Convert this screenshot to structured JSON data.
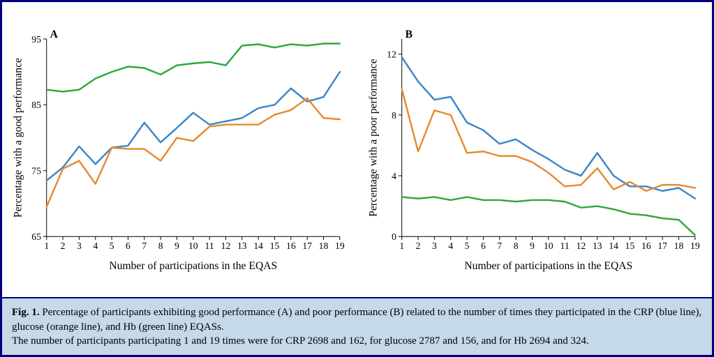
{
  "figure": {
    "caption_title": "Fig. 1.",
    "caption_body": "Percentage of participants exhibiting good performance (A) and poor performance (B) related to the number of times they participated in the CRP (blue line), glucose (orange line), and Hb (green line) EQASs.",
    "caption_note": "The number of participants participating 1 and 19 times were for CRP 2698 and 162, for glucose 2787 and 156, and for Hb 2694 and 324.",
    "border_color": "#000080",
    "caption_bg": "#c5d9e8",
    "line_width": 2.5,
    "colors": {
      "crp": "#3b86c8",
      "glucose": "#e78a2e",
      "hb": "#2fa83a"
    },
    "panelA": {
      "label": "A",
      "ylabel": "Percentage with a good performance",
      "xlabel": "Number of participations in the EQAS",
      "x": [
        1,
        2,
        3,
        4,
        5,
        6,
        7,
        8,
        9,
        10,
        11,
        12,
        13,
        14,
        15,
        16,
        17,
        18,
        19
      ],
      "xlim": [
        1,
        19
      ],
      "ylim": [
        65,
        95
      ],
      "yticks": [
        65,
        75,
        85,
        95
      ],
      "series": {
        "hb": [
          87.3,
          87.0,
          87.3,
          89.0,
          90.0,
          90.8,
          90.6,
          89.6,
          91.0,
          91.3,
          91.5,
          91.0,
          94.0,
          94.2,
          93.7,
          94.2,
          94.0,
          94.3,
          94.3
        ],
        "crp": [
          73.5,
          75.5,
          78.7,
          76.0,
          78.5,
          78.8,
          82.3,
          79.3,
          81.5,
          83.8,
          82.0,
          82.5,
          83.0,
          84.5,
          85.0,
          87.5,
          85.5,
          86.2,
          90.0
        ],
        "glucose": [
          69.5,
          75.3,
          76.5,
          73.0,
          78.5,
          78.3,
          78.3,
          76.5,
          80.0,
          79.5,
          81.7,
          82.0,
          82.0,
          82.0,
          83.5,
          84.2,
          86.0,
          83.0,
          82.8
        ]
      },
      "tick_fontsize": 14,
      "label_fontsize": 16
    },
    "panelB": {
      "label": "B",
      "ylabel": "Percentage with a poor performance",
      "xlabel": "Number of participations in the EQAS",
      "x": [
        1,
        2,
        3,
        4,
        5,
        6,
        7,
        8,
        9,
        10,
        11,
        12,
        13,
        14,
        15,
        16,
        17,
        18,
        19
      ],
      "xlim": [
        1,
        19
      ],
      "ylim": [
        0,
        13
      ],
      "yticks": [
        0,
        4,
        8,
        12
      ],
      "series": {
        "crp": [
          11.8,
          10.2,
          9.0,
          9.2,
          7.5,
          7.0,
          6.1,
          6.4,
          5.7,
          5.1,
          4.4,
          4.0,
          5.5,
          4.0,
          3.3,
          3.3,
          3.0,
          3.2,
          2.5
        ],
        "glucose": [
          9.7,
          5.6,
          8.3,
          8.0,
          5.5,
          5.6,
          5.3,
          5.3,
          4.9,
          4.2,
          3.3,
          3.4,
          4.5,
          3.1,
          3.6,
          3.0,
          3.4,
          3.4,
          3.2
        ],
        "hb": [
          2.6,
          2.5,
          2.6,
          2.4,
          2.6,
          2.4,
          2.4,
          2.3,
          2.4,
          2.4,
          2.3,
          1.9,
          2.0,
          1.8,
          1.5,
          1.4,
          1.2,
          1.1,
          0.1
        ]
      },
      "tick_fontsize": 14,
      "label_fontsize": 16
    }
  }
}
